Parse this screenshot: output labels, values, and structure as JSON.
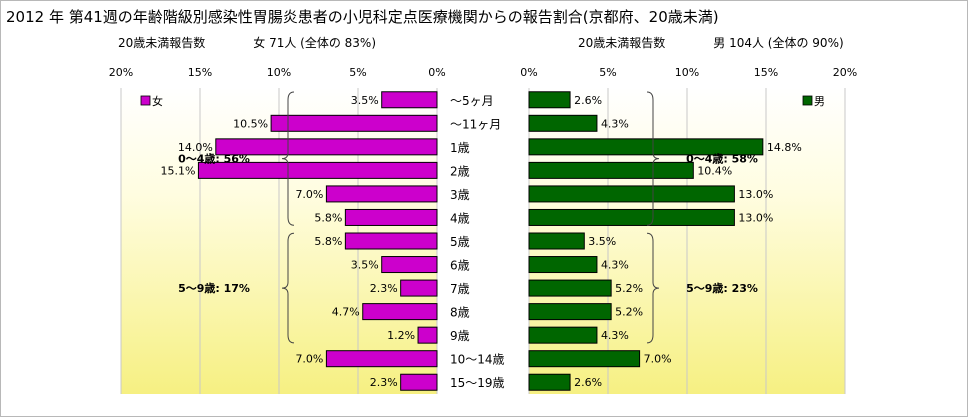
{
  "title": "2012 年 第41週の年齢階級別感染性胃腸炎患者の小児科定点医療機関からの報告割合(京都府、20歳未満)",
  "left_subtitle": "20歳未満報告数　　　　女 71人 (全体の 83%)",
  "right_subtitle": "20歳未満報告数　　　　男 104人 (全体の 90%)",
  "chart_data": [
    {
      "type": "bar",
      "orientation": "horizontal",
      "direction": "right-to-left",
      "categories": [
        "～5ヶ月",
        "～11ヶ月",
        "1歳",
        "2歳",
        "3歳",
        "4歳",
        "5歳",
        "6歳",
        "7歳",
        "8歳",
        "9歳",
        "10～14歳",
        "15～19歳"
      ],
      "series": [
        {
          "name": "女",
          "values": [
            3.5,
            10.5,
            14.0,
            15.1,
            7.0,
            5.8,
            5.8,
            3.5,
            2.3,
            4.7,
            1.2,
            7.0,
            2.3
          ],
          "color": "#cc00cc"
        }
      ],
      "data_labels": [
        "3.5%",
        "10.5%",
        "14.0%",
        "15.1%",
        "7.0%",
        "5.8%",
        "5.8%",
        "3.5%",
        "2.3%",
        "4.7%",
        "1.2%",
        "7.0%",
        "2.3%"
      ],
      "xlim": [
        0,
        20
      ],
      "tick_labels": [
        "20%",
        "15%",
        "10%",
        "5%",
        "0%"
      ],
      "legend": "top-left",
      "annotations": [
        {
          "text": "0～4歳: 56%",
          "category_range": [
            0,
            5
          ]
        },
        {
          "text": "5～9歳: 17%",
          "category_range": [
            6,
            10
          ]
        }
      ]
    },
    {
      "type": "bar",
      "orientation": "horizontal",
      "direction": "left-to-right",
      "categories": [
        "～5ヶ月",
        "～11ヶ月",
        "1歳",
        "2歳",
        "3歳",
        "4歳",
        "5歳",
        "6歳",
        "7歳",
        "8歳",
        "9歳",
        "10～14歳",
        "15～19歳"
      ],
      "series": [
        {
          "name": "男",
          "values": [
            2.6,
            4.3,
            14.8,
            10.4,
            13.0,
            13.0,
            3.5,
            4.3,
            5.2,
            5.2,
            4.3,
            7.0,
            2.6
          ],
          "color": "#006600"
        }
      ],
      "data_labels": [
        "2.6%",
        "4.3%",
        "14.8%",
        "10.4%",
        "13.0%",
        "13.0%",
        "3.5%",
        "4.3%",
        "5.2%",
        "5.2%",
        "4.3%",
        "7.0%",
        "2.6%"
      ],
      "xlim": [
        0,
        20
      ],
      "tick_labels": [
        "0%",
        "5%",
        "10%",
        "15%",
        "20%"
      ],
      "legend": "top-right",
      "annotations": [
        {
          "text": "0～4歳: 58%",
          "category_range": [
            0,
            5
          ]
        },
        {
          "text": "5～9歳: 23%",
          "category_range": [
            6,
            10
          ]
        }
      ]
    }
  ]
}
